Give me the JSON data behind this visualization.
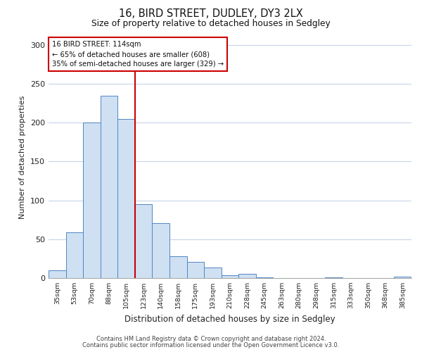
{
  "title1": "16, BIRD STREET, DUDLEY, DY3 2LX",
  "title2": "Size of property relative to detached houses in Sedgley",
  "xlabel": "Distribution of detached houses by size in Sedgley",
  "ylabel": "Number of detached properties",
  "bar_labels": [
    "35sqm",
    "53sqm",
    "70sqm",
    "88sqm",
    "105sqm",
    "123sqm",
    "140sqm",
    "158sqm",
    "175sqm",
    "193sqm",
    "210sqm",
    "228sqm",
    "245sqm",
    "263sqm",
    "280sqm",
    "298sqm",
    "315sqm",
    "333sqm",
    "350sqm",
    "368sqm",
    "385sqm"
  ],
  "bar_values": [
    10,
    59,
    200,
    234,
    205,
    95,
    71,
    28,
    21,
    14,
    4,
    5,
    1,
    0,
    0,
    0,
    1,
    0,
    0,
    0,
    2
  ],
  "bar_color": "#cfe0f3",
  "bar_edge_color": "#4f86c0",
  "ylim": [
    0,
    310
  ],
  "yticks": [
    0,
    50,
    100,
    150,
    200,
    250,
    300
  ],
  "vline_idx": 5,
  "property_line_label": "16 BIRD STREET: 114sqm",
  "annotation_line1": "← 65% of detached houses are smaller (608)",
  "annotation_line2": "35% of semi-detached houses are larger (329) →",
  "box_color": "#cc0000",
  "box_bg": "#ffffff",
  "vline_color": "#cc0000",
  "footer1": "Contains HM Land Registry data © Crown copyright and database right 2024.",
  "footer2": "Contains public sector information licensed under the Open Government Licence v3.0.",
  "bg_color": "#ffffff",
  "grid_color": "#c8d4e8"
}
